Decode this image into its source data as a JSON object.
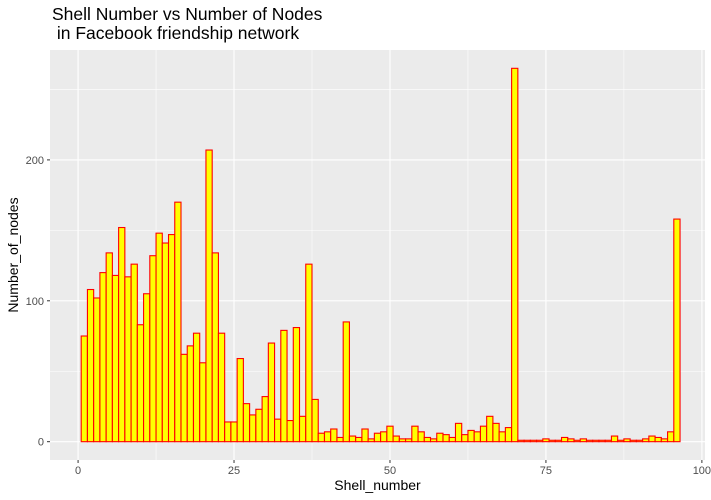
{
  "chart_data": {
    "type": "bar",
    "title_lines": [
      "Shell Number vs Number of Nodes",
      " in Facebook friendship network"
    ],
    "xlabel": "Shell_number",
    "ylabel": "Number_of_nodes",
    "xlim": [
      -4.5,
      100.5
    ],
    "ylim": [
      -13,
      278
    ],
    "x_ticks": [
      0,
      25,
      50,
      75,
      100
    ],
    "x_tick_labels": [
      "0",
      "25",
      "50",
      "75",
      "100"
    ],
    "y_ticks": [
      0,
      100,
      200
    ],
    "y_tick_labels": [
      "0",
      "100",
      "200"
    ],
    "grid": true,
    "legend": "none",
    "bar_fill": "#ffff00",
    "bar_stroke": "#ff0000",
    "panel_background": "#ebebeb",
    "grid_color": "#ffffff",
    "x": [
      1,
      2,
      3,
      4,
      5,
      6,
      7,
      8,
      9,
      10,
      11,
      12,
      13,
      14,
      15,
      16,
      17,
      18,
      19,
      20,
      21,
      22,
      23,
      24,
      25,
      26,
      27,
      28,
      29,
      30,
      31,
      32,
      33,
      34,
      35,
      36,
      37,
      38,
      39,
      40,
      41,
      42,
      43,
      44,
      45,
      46,
      47,
      48,
      49,
      50,
      51,
      52,
      53,
      54,
      55,
      56,
      57,
      58,
      59,
      60,
      61,
      62,
      63,
      64,
      65,
      66,
      67,
      68,
      69,
      70,
      71,
      72,
      73,
      74,
      75,
      76,
      77,
      78,
      79,
      80,
      81,
      82,
      83,
      84,
      85,
      86,
      87,
      88,
      89,
      90,
      91,
      92,
      93,
      94,
      95,
      96
    ],
    "values": [
      75,
      108,
      102,
      120,
      134,
      118,
      152,
      117,
      126,
      83,
      105,
      132,
      148,
      141,
      147,
      170,
      62,
      68,
      77,
      56,
      207,
      134,
      77,
      14,
      14,
      59,
      27,
      19,
      23,
      32,
      70,
      16,
      79,
      15,
      81,
      18,
      126,
      30,
      6,
      7,
      9,
      3,
      85,
      4,
      3,
      9,
      2,
      6,
      7,
      11,
      4,
      2,
      2,
      11,
      7,
      3,
      2,
      6,
      5,
      3,
      13,
      5,
      8,
      7,
      11,
      18,
      13,
      7,
      10,
      265,
      1,
      1,
      1,
      1,
      2,
      1,
      1,
      3,
      2,
      1,
      2,
      1,
      1,
      1,
      1,
      4,
      1,
      2,
      1,
      1,
      2,
      4,
      3,
      2,
      7,
      158
    ]
  }
}
